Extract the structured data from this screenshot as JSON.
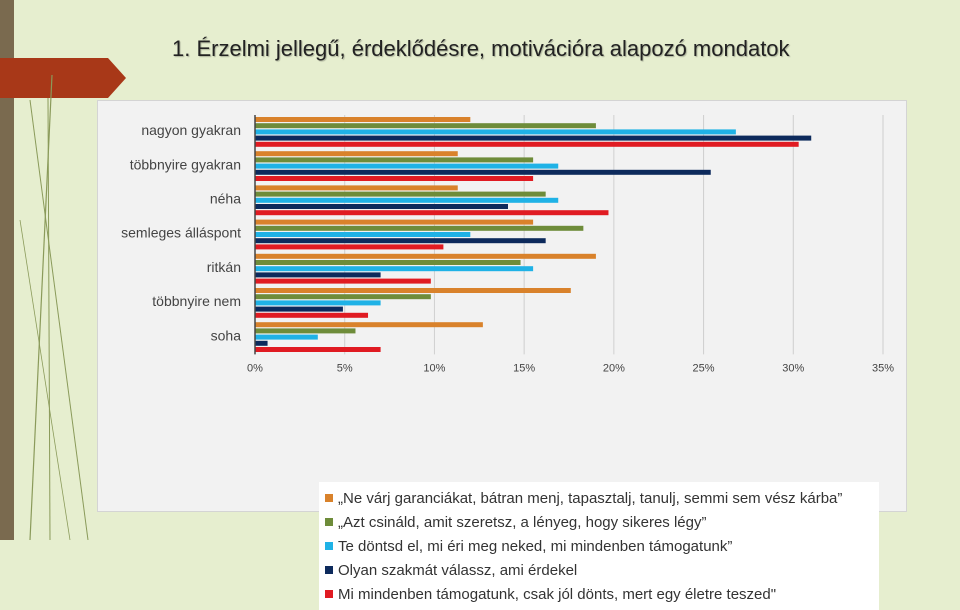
{
  "slide": {
    "title": "1. Érzelmi jellegű, érdeklődésre, motivációra alapozó mondatok",
    "colors": {
      "background": "#e6eecf",
      "sidebar": "#7a6a4f",
      "accent": "#a83818",
      "panel": "#f2f2f2"
    }
  },
  "chart_data": {
    "type": "bar",
    "orientation": "horizontal",
    "categories": [
      "nagyon gyakran",
      "többnyire gyakran",
      "néha",
      "semleges álláspont",
      "ritkán",
      "többnyire nem",
      "soha"
    ],
    "series": [
      {
        "name": "„Ne várj garanciákat, bátran menj, tapasztalj, tanulj, semmi sem vész kárba”",
        "color": "#d9822b",
        "values": [
          12.0,
          11.3,
          11.3,
          15.5,
          19.0,
          17.6,
          12.7
        ]
      },
      {
        "name": "„Azt csináld, amit szeretsz, a lényeg, hogy sikeres légy”",
        "color": "#6e8c3a",
        "values": [
          19.0,
          15.5,
          16.2,
          18.3,
          14.8,
          9.8,
          5.6
        ]
      },
      {
        "name": "Te döntsd el, mi éri meg neked, mi mindenben támogatunk”",
        "color": "#1fb2e6",
        "values": [
          26.8,
          16.9,
          16.9,
          12.0,
          15.5,
          7.0,
          3.5
        ]
      },
      {
        "name": "Olyan szakmát válassz, ami érdekel",
        "color": "#0d2a5c",
        "values": [
          31.0,
          25.4,
          14.1,
          16.2,
          7.0,
          4.9,
          0.7
        ]
      },
      {
        "name": "Mi mindenben támogatunk, csak jól dönts, mert egy életre teszed\"",
        "color": "#e01b22",
        "values": [
          30.3,
          15.5,
          19.7,
          10.5,
          9.8,
          6.3,
          7.0
        ]
      }
    ],
    "xlim": [
      0,
      35
    ],
    "xticks": [
      0,
      5,
      10,
      15,
      20,
      25,
      30,
      35
    ],
    "xtick_labels": [
      "0%",
      "5%",
      "10%",
      "15%",
      "20%",
      "25%",
      "30%",
      "35%"
    ],
    "grid": true,
    "legend_position": "bottom"
  }
}
